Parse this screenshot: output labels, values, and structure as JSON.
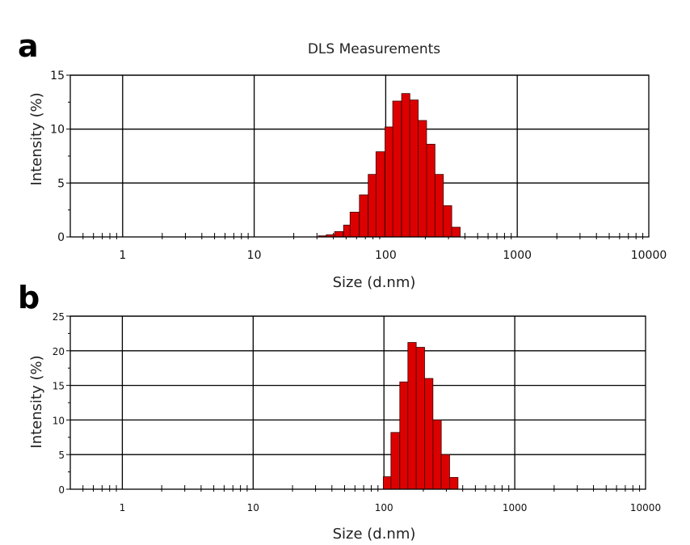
{
  "panel_labels": {
    "a": "a",
    "b": "b"
  },
  "chart_data": [
    {
      "type": "bar",
      "panel": "a",
      "title": "DLS Measurements",
      "xlabel": "Size (d.nm)",
      "ylabel": "Intensity (%)",
      "x_scale": "log",
      "xlim": [
        0.4,
        10000
      ],
      "ylim": [
        0,
        15
      ],
      "x_tick_labels": [
        "1",
        "10",
        "100",
        "1000",
        "10000"
      ],
      "y_tick_labels": [
        "0",
        "5",
        "10",
        "15"
      ],
      "grid": true,
      "bar_color": "#dd0000",
      "x": [
        33,
        38,
        44,
        51,
        58,
        68,
        79,
        91,
        106,
        122,
        142,
        164,
        190,
        220,
        255,
        295,
        342
      ],
      "values": [
        0.1,
        0.2,
        0.5,
        1.1,
        2.3,
        3.9,
        5.8,
        7.9,
        10.2,
        12.6,
        13.3,
        12.7,
        10.8,
        8.6,
        5.8,
        2.9,
        0.9
      ]
    },
    {
      "type": "bar",
      "panel": "b",
      "title": "",
      "xlabel": "Size (d.nm)",
      "ylabel": "Intensity (%)",
      "x_scale": "log",
      "xlim": [
        0.4,
        10000
      ],
      "ylim": [
        0,
        25
      ],
      "x_tick_labels": [
        "1",
        "10",
        "100",
        "1000",
        "10000"
      ],
      "y_tick_labels": [
        "0",
        "5",
        "10",
        "15",
        "20",
        "25"
      ],
      "grid": true,
      "bar_color": "#dd0000",
      "x": [
        106,
        122,
        142,
        164,
        190,
        220,
        255,
        295,
        342
      ],
      "values": [
        1.8,
        8.2,
        15.5,
        21.2,
        20.5,
        16.0,
        10.0,
        5.0,
        1.7
      ]
    }
  ]
}
